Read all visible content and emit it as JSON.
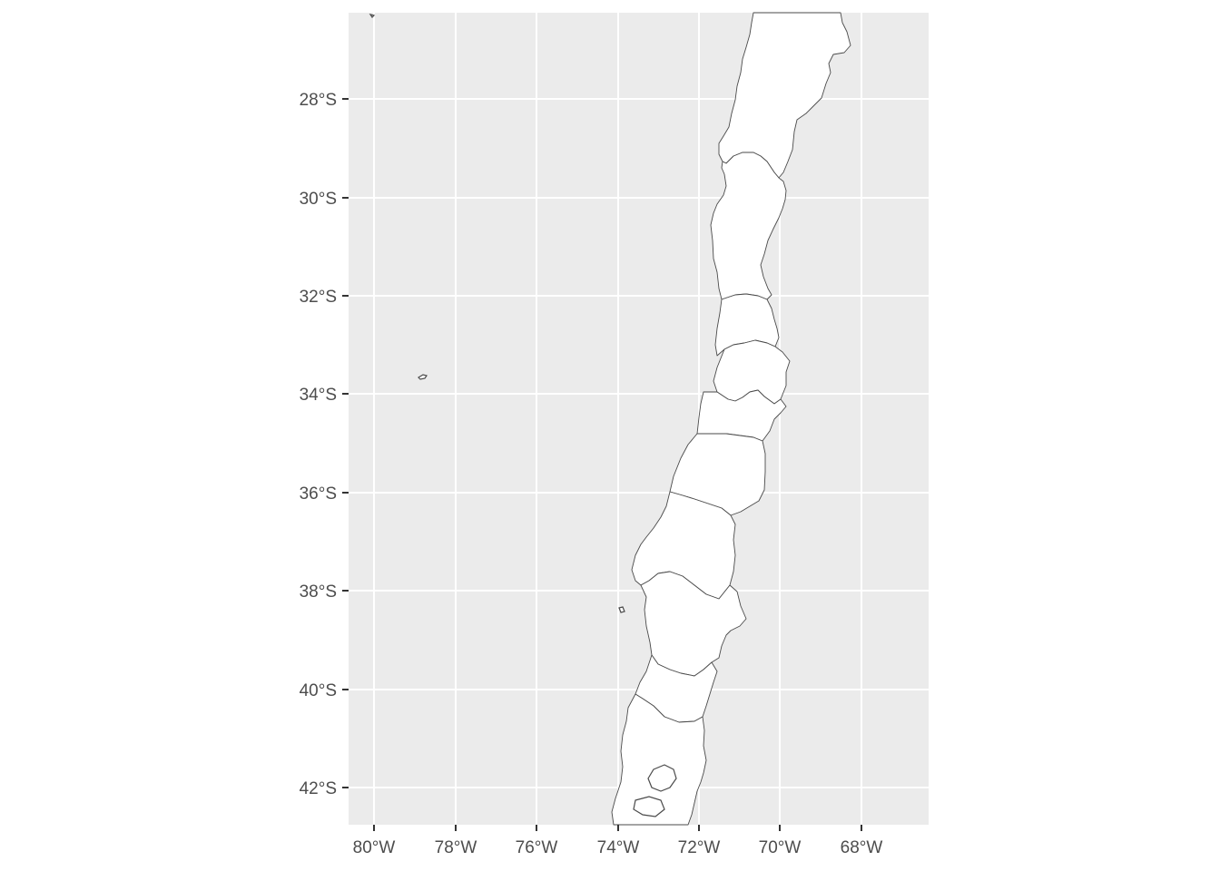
{
  "map": {
    "lon_labels": [
      "80°W",
      "78°W",
      "76°W",
      "74°W",
      "72°W",
      "70°W",
      "68°W"
    ],
    "lat_labels": [
      "28°S",
      "30°S",
      "32°S",
      "34°S",
      "36°S",
      "38°S",
      "40°S",
      "42°S"
    ],
    "panel_background": "#ebebeb",
    "land_fill": "#ffffff",
    "border_color": "#4a4a4a",
    "grid_color": "#ffffff",
    "text_color": "#4d4d4d"
  }
}
